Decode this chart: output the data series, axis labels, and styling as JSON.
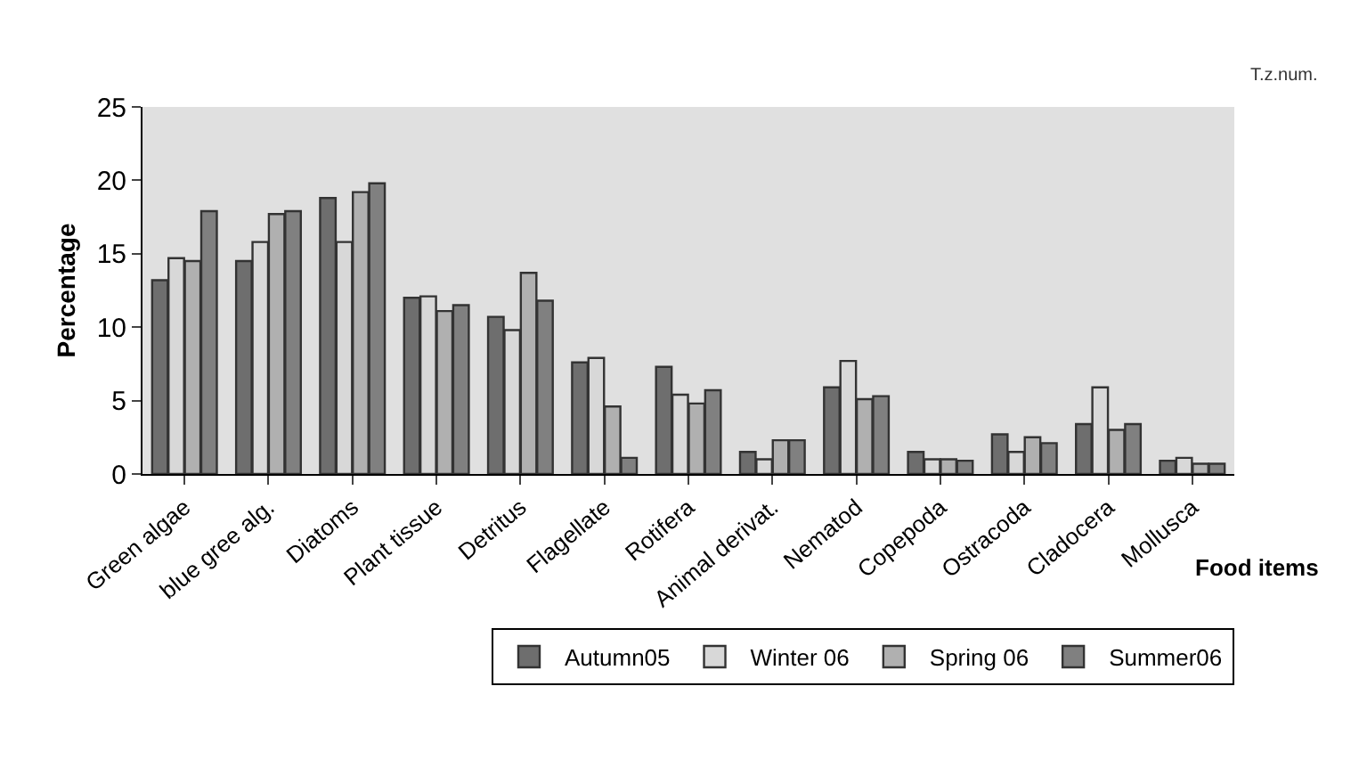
{
  "chart_data": {
    "type": "bar",
    "xlabel": "Food items",
    "ylabel": "Percentage",
    "annotations": [
      "T.z.num."
    ],
    "categories": [
      "Green algae",
      "blue gree alg.",
      "Diatoms",
      "Plant tissue",
      "Detritus",
      "Flagellate",
      "Rotifera",
      "Animal derivat.",
      "Nematod",
      "Copepoda",
      "Ostracoda",
      "Cladocera",
      "Mollusca"
    ],
    "series": [
      {
        "name": "Autumn05",
        "color": "#6e6e6e",
        "values": [
          13.2,
          14.5,
          18.8,
          12.0,
          10.7,
          7.6,
          7.3,
          1.5,
          5.9,
          1.5,
          2.7,
          3.4,
          0.9
        ]
      },
      {
        "name": "Winter 06",
        "color": "#d8d8d8",
        "values": [
          14.7,
          15.8,
          15.8,
          12.1,
          9.8,
          7.9,
          5.4,
          1.0,
          7.7,
          1.0,
          1.5,
          5.9,
          1.1
        ]
      },
      {
        "name": "Spring 06",
        "color": "#b0b0b0",
        "values": [
          14.5,
          17.7,
          19.2,
          11.1,
          13.7,
          4.6,
          4.8,
          2.3,
          5.1,
          1.0,
          2.5,
          3.0,
          0.7
        ]
      },
      {
        "name": "Summer06",
        "color": "#808080",
        "values": [
          17.9,
          17.9,
          19.8,
          11.5,
          11.8,
          1.1,
          5.7,
          2.3,
          5.3,
          0.9,
          2.1,
          3.4,
          0.7
        ]
      }
    ],
    "ylim": [
      0,
      25
    ],
    "yticks": [
      0,
      5,
      10,
      15,
      20,
      25
    ],
    "grid": false,
    "legend": "bottom right"
  }
}
